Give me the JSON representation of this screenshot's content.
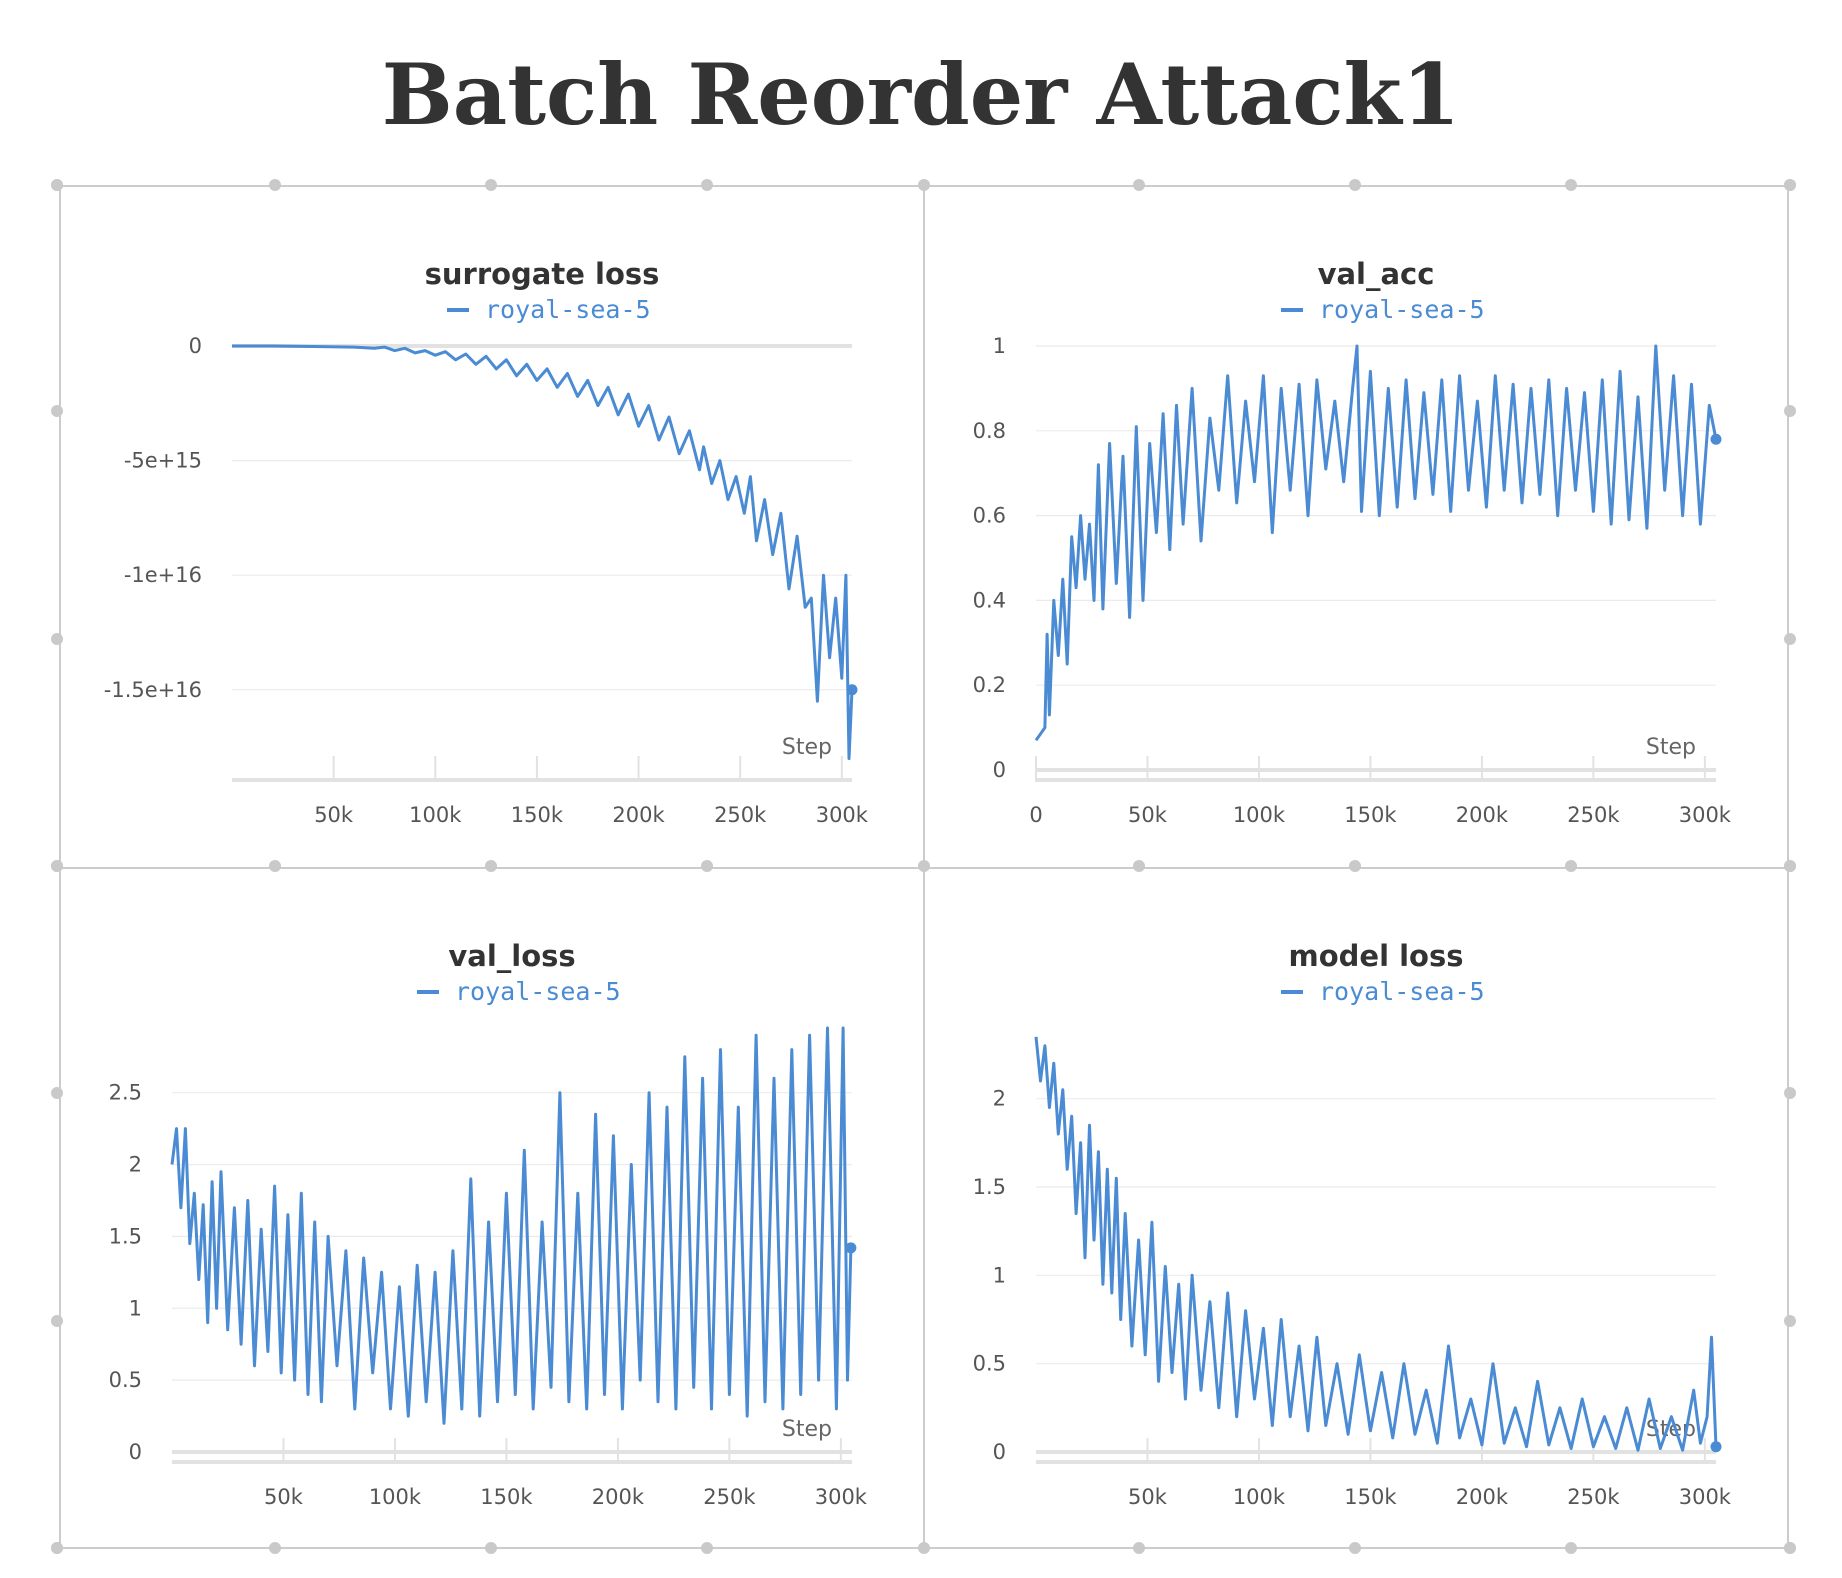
{
  "page": {
    "title": "Batch Reorder Attack1"
  },
  "colors": {
    "series": "#4a8bd4",
    "grid": "#ebebeb",
    "axis": "#e2e2e2",
    "panel_border": "#cccccc",
    "handle": "#c9c9c9"
  },
  "chart_data": [
    {
      "type": "line",
      "title": "surrogate loss",
      "xlabel": "Step",
      "ylabel": "",
      "legend": [
        "royal-sea-5"
      ],
      "xlim": [
        0,
        305000
      ],
      "ylim": [
        -1.85e+16,
        0
      ],
      "x_ticks": [
        50000,
        100000,
        150000,
        200000,
        250000,
        300000
      ],
      "x_tick_labels": [
        "50k",
        "100k",
        "150k",
        "200k",
        "250k",
        "300k"
      ],
      "y_ticks": [
        0,
        -5000000000000000.0,
        -1e+16,
        -1.5e+16
      ],
      "y_tick_labels": [
        "0",
        "-5e+15",
        "-1e+16",
        "-1.5e+16"
      ],
      "series": [
        {
          "name": "royal-sea-5",
          "x": [
            0,
            20000,
            40000,
            60000,
            70000,
            75000,
            80000,
            85000,
            90000,
            95000,
            100000,
            105000,
            110000,
            115000,
            120000,
            125000,
            130000,
            135000,
            140000,
            145000,
            150000,
            155000,
            160000,
            165000,
            170000,
            175000,
            180000,
            185000,
            190000,
            195000,
            200000,
            205000,
            210000,
            215000,
            220000,
            225000,
            230000,
            232000,
            236000,
            240000,
            244000,
            248000,
            252000,
            255000,
            258000,
            262000,
            266000,
            270000,
            274000,
            278000,
            282000,
            285000,
            288000,
            291000,
            294000,
            297000,
            300000,
            302000,
            303500,
            305000
          ],
          "y": [
            0,
            0,
            -20000000000000.0,
            -50000000000000.0,
            -100000000000000.0,
            -50000000000000.0,
            -200000000000000.0,
            -100000000000000.0,
            -300000000000000.0,
            -200000000000000.0,
            -400000000000000.0,
            -250000000000000.0,
            -600000000000000.0,
            -350000000000000.0,
            -800000000000000.0,
            -450000000000000.0,
            -1000000000000000.0,
            -600000000000000.0,
            -1300000000000000.0,
            -800000000000000.0,
            -1500000000000000.0,
            -1000000000000000.0,
            -1800000000000000.0,
            -1200000000000000.0,
            -2200000000000000.0,
            -1500000000000000.0,
            -2600000000000000.0,
            -1800000000000000.0,
            -3000000000000000.0,
            -2100000000000000.0,
            -3500000000000000.0,
            -2600000000000000.0,
            -4100000000000000.0,
            -3100000000000000.0,
            -4700000000000000.0,
            -3700000000000000.0,
            -5400000000000000.0,
            -4400000000000000.0,
            -6000000000000000.0,
            -5000000000000000.0,
            -6700000000000000.0,
            -5700000000000000.0,
            -7300000000000000.0,
            -5700000000000000.0,
            -8500000000000000.0,
            -6700000000000000.0,
            -9100000000000000.0,
            -7300000000000000.0,
            -1.06e+16,
            -8300000000000000.0,
            -1.14e+16,
            -1.1e+16,
            -1.55e+16,
            -1e+16,
            -1.36e+16,
            -1.1e+16,
            -1.45e+16,
            -1e+16,
            -1.8e+16,
            -1.5e+16
          ]
        }
      ]
    },
    {
      "type": "line",
      "title": "val_acc",
      "xlabel": "Step",
      "ylabel": "",
      "legend": [
        "royal-sea-5"
      ],
      "xlim": [
        0,
        305000
      ],
      "ylim": [
        0,
        1
      ],
      "x_ticks": [
        0,
        50000,
        100000,
        150000,
        200000,
        250000,
        300000
      ],
      "x_tick_labels": [
        "0",
        "50k",
        "100k",
        "150k",
        "200k",
        "250k",
        "300k"
      ],
      "y_ticks": [
        0,
        0.2,
        0.4,
        0.6,
        0.8,
        1
      ],
      "y_tick_labels": [
        "0",
        "0.2",
        "0.4",
        "0.6",
        "0.8",
        "1"
      ],
      "series": [
        {
          "name": "royal-sea-5",
          "x": [
            0,
            4000,
            5000,
            6000,
            8000,
            10000,
            12000,
            14000,
            16000,
            18000,
            20000,
            22000,
            24000,
            26000,
            28000,
            30000,
            33000,
            36000,
            39000,
            42000,
            45000,
            48000,
            51000,
            54000,
            57000,
            60000,
            63000,
            66000,
            70000,
            74000,
            78000,
            82000,
            86000,
            90000,
            94000,
            98000,
            102000,
            106000,
            110000,
            114000,
            118000,
            122000,
            126000,
            130000,
            134000,
            138000,
            142000,
            144000,
            146000,
            150000,
            154000,
            158000,
            162000,
            166000,
            170000,
            174000,
            178000,
            182000,
            186000,
            190000,
            194000,
            198000,
            202000,
            206000,
            210000,
            214000,
            218000,
            222000,
            226000,
            230000,
            234000,
            238000,
            242000,
            246000,
            250000,
            254000,
            258000,
            262000,
            266000,
            270000,
            274000,
            278000,
            282000,
            286000,
            290000,
            294000,
            298000,
            302000,
            305000
          ],
          "y": [
            0.07,
            0.1,
            0.32,
            0.13,
            0.4,
            0.27,
            0.45,
            0.25,
            0.55,
            0.43,
            0.6,
            0.45,
            0.58,
            0.4,
            0.72,
            0.38,
            0.77,
            0.44,
            0.74,
            0.36,
            0.81,
            0.4,
            0.77,
            0.56,
            0.84,
            0.52,
            0.86,
            0.58,
            0.9,
            0.54,
            0.83,
            0.66,
            0.93,
            0.63,
            0.87,
            0.68,
            0.93,
            0.56,
            0.9,
            0.66,
            0.91,
            0.6,
            0.92,
            0.71,
            0.87,
            0.68,
            0.9,
            1.0,
            0.61,
            0.94,
            0.6,
            0.9,
            0.62,
            0.92,
            0.64,
            0.89,
            0.65,
            0.92,
            0.61,
            0.93,
            0.66,
            0.87,
            0.62,
            0.93,
            0.66,
            0.91,
            0.63,
            0.9,
            0.65,
            0.92,
            0.6,
            0.9,
            0.66,
            0.89,
            0.61,
            0.92,
            0.58,
            0.94,
            0.59,
            0.88,
            0.57,
            1.0,
            0.66,
            0.93,
            0.6,
            0.91,
            0.58,
            0.86,
            0.78
          ]
        }
      ]
    },
    {
      "type": "line",
      "title": "val_loss",
      "xlabel": "Step",
      "ylabel": "",
      "legend": [
        "royal-sea-5"
      ],
      "xlim": [
        0,
        305000
      ],
      "ylim": [
        0,
        2.95
      ],
      "x_ticks": [
        50000,
        100000,
        150000,
        200000,
        250000,
        300000
      ],
      "x_tick_labels": [
        "50k",
        "100k",
        "150k",
        "200k",
        "250k",
        "300k"
      ],
      "y_ticks": [
        0,
        0.5,
        1,
        1.5,
        2,
        2.5
      ],
      "y_tick_labels": [
        "0",
        "0.5",
        "1",
        "1.5",
        "2",
        "2.5"
      ],
      "series": [
        {
          "name": "royal-sea-5",
          "x": [
            0,
            2000,
            4000,
            6000,
            8000,
            10000,
            12000,
            14000,
            16000,
            18000,
            20000,
            22000,
            25000,
            28000,
            31000,
            34000,
            37000,
            40000,
            43000,
            46000,
            49000,
            52000,
            55000,
            58000,
            61000,
            64000,
            67000,
            70000,
            74000,
            78000,
            82000,
            86000,
            90000,
            94000,
            98000,
            102000,
            106000,
            110000,
            114000,
            118000,
            122000,
            126000,
            130000,
            134000,
            138000,
            142000,
            146000,
            150000,
            154000,
            158000,
            162000,
            166000,
            170000,
            174000,
            178000,
            182000,
            186000,
            190000,
            194000,
            198000,
            202000,
            206000,
            210000,
            214000,
            218000,
            222000,
            226000,
            230000,
            234000,
            238000,
            242000,
            246000,
            250000,
            254000,
            258000,
            262000,
            266000,
            270000,
            274000,
            278000,
            282000,
            286000,
            290000,
            294000,
            298000,
            301000,
            303000,
            304500
          ],
          "y": [
            2.0,
            2.25,
            1.7,
            2.25,
            1.45,
            1.8,
            1.2,
            1.72,
            0.9,
            1.88,
            1.0,
            1.95,
            0.85,
            1.7,
            0.75,
            1.75,
            0.6,
            1.55,
            0.7,
            1.85,
            0.55,
            1.65,
            0.5,
            1.8,
            0.4,
            1.6,
            0.35,
            1.5,
            0.6,
            1.4,
            0.3,
            1.35,
            0.55,
            1.25,
            0.3,
            1.15,
            0.25,
            1.3,
            0.35,
            1.25,
            0.2,
            1.4,
            0.3,
            1.9,
            0.25,
            1.6,
            0.35,
            1.8,
            0.4,
            2.1,
            0.3,
            1.6,
            0.45,
            2.5,
            0.35,
            1.8,
            0.3,
            2.35,
            0.4,
            2.2,
            0.3,
            2.0,
            0.5,
            2.5,
            0.35,
            2.4,
            0.3,
            2.75,
            0.45,
            2.6,
            0.3,
            2.8,
            0.4,
            2.4,
            0.25,
            2.9,
            0.35,
            2.6,
            0.3,
            2.8,
            0.4,
            2.9,
            0.5,
            2.95,
            0.3,
            2.95,
            0.5,
            1.42
          ]
        }
      ]
    },
    {
      "type": "line",
      "title": "model loss",
      "xlabel": "Step",
      "ylabel": "",
      "legend": [
        "royal-sea-5"
      ],
      "xlim": [
        0,
        305000
      ],
      "ylim": [
        0,
        2.4
      ],
      "x_ticks": [
        50000,
        100000,
        150000,
        200000,
        250000,
        300000
      ],
      "x_tick_labels": [
        "50k",
        "100k",
        "150k",
        "200k",
        "250k",
        "300k"
      ],
      "y_ticks": [
        0,
        0.5,
        1,
        1.5,
        2
      ],
      "y_tick_labels": [
        "0",
        "0.5",
        "1",
        "1.5",
        "2"
      ],
      "series": [
        {
          "name": "royal-sea-5",
          "x": [
            0,
            2000,
            4000,
            6000,
            8000,
            10000,
            12000,
            14000,
            16000,
            18000,
            20000,
            22000,
            24000,
            26000,
            28000,
            30000,
            32000,
            34000,
            36000,
            38000,
            40000,
            43000,
            46000,
            49000,
            52000,
            55000,
            58000,
            61000,
            64000,
            67000,
            70000,
            74000,
            78000,
            82000,
            86000,
            90000,
            94000,
            98000,
            102000,
            106000,
            110000,
            114000,
            118000,
            122000,
            126000,
            130000,
            135000,
            140000,
            145000,
            150000,
            155000,
            160000,
            165000,
            170000,
            175000,
            180000,
            185000,
            190000,
            195000,
            200000,
            205000,
            210000,
            215000,
            220000,
            225000,
            230000,
            235000,
            240000,
            245000,
            250000,
            255000,
            260000,
            265000,
            270000,
            275000,
            280000,
            285000,
            290000,
            295000,
            298000,
            301000,
            303000,
            305000
          ],
          "y": [
            2.35,
            2.1,
            2.3,
            1.95,
            2.2,
            1.8,
            2.05,
            1.6,
            1.9,
            1.35,
            1.75,
            1.1,
            1.85,
            1.2,
            1.7,
            0.95,
            1.6,
            0.9,
            1.55,
            0.75,
            1.35,
            0.6,
            1.2,
            0.55,
            1.3,
            0.4,
            1.05,
            0.45,
            0.95,
            0.3,
            1.0,
            0.35,
            0.85,
            0.25,
            0.9,
            0.2,
            0.8,
            0.3,
            0.7,
            0.15,
            0.75,
            0.2,
            0.6,
            0.12,
            0.65,
            0.15,
            0.5,
            0.1,
            0.55,
            0.12,
            0.45,
            0.08,
            0.5,
            0.1,
            0.35,
            0.05,
            0.6,
            0.08,
            0.3,
            0.04,
            0.5,
            0.05,
            0.25,
            0.03,
            0.4,
            0.04,
            0.25,
            0.02,
            0.3,
            0.03,
            0.2,
            0.02,
            0.25,
            0.01,
            0.3,
            0.02,
            0.2,
            0.01,
            0.35,
            0.05,
            0.2,
            0.65,
            0.03
          ]
        }
      ]
    }
  ]
}
